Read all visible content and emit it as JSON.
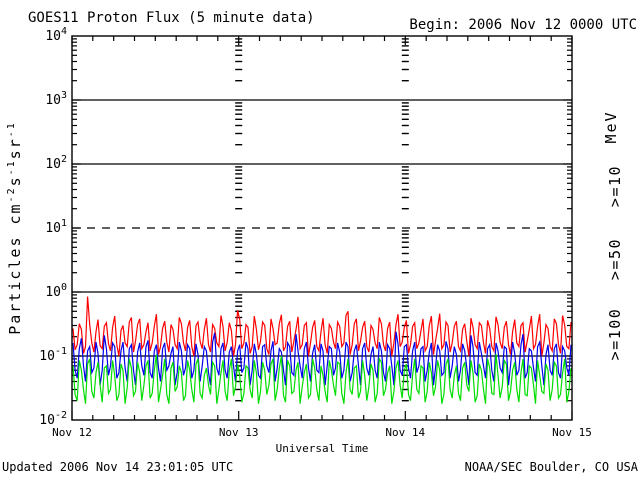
{
  "header": {
    "title": "GOES11 Proton Flux (5 minute data)",
    "begin_label": "Begin: 2006 Nov 12 0000 UTC"
  },
  "footer": {
    "updated": "Updated 2006 Nov 14 23:01:05 UTC",
    "credit": "NOAA/SEC Boulder, CO USA"
  },
  "chart_data": {
    "type": "line",
    "title": "GOES11 Proton Flux (5 minute data)",
    "xlabel": "Universal Time",
    "ylabel": "Particles cm-2s-1sr-1",
    "ylabel_parts": [
      {
        "text": "Particles cm"
      },
      {
        "sup": "-2"
      },
      {
        "text": "s"
      },
      {
        "sup": "-1"
      },
      {
        "text": "sr"
      },
      {
        "sup": "-1"
      }
    ],
    "unit_label": "MeV",
    "x_tick_labels": [
      "Nov 12",
      "Nov 13",
      "Nov 14",
      "Nov 15"
    ],
    "x_span_days": 3,
    "y_axis_range": [
      0.01,
      10000
    ],
    "y_tick_exponents": [
      4,
      3,
      2,
      1,
      0,
      -1,
      -2
    ],
    "grid": {
      "solid_decades": [
        3,
        2,
        0,
        -1
      ],
      "dashed_decades": [
        1
      ],
      "vertical_dashed_days": [
        1,
        2
      ]
    },
    "values_scale": 0.001,
    "sample_interval_minutes": 36,
    "series": [
      {
        "name": ">=10",
        "color": "#ff0000",
        "hi": [
          270,
          320,
          260,
          850,
          310,
          240,
          370,
          290,
          330,
          280,
          420,
          250,
          300,
          340,
          400,
          310,
          380,
          240,
          330,
          290,
          450,
          270,
          350,
          310,
          260,
          400,
          320,
          280,
          360,
          300,
          340,
          260,
          390,
          310,
          270,
          430,
          290,
          330,
          250,
          520,
          370,
          310,
          280,
          420,
          260,
          340,
          300,
          380,
          270,
          320,
          440,
          290,
          350,
          260,
          410,
          300,
          330,
          280,
          360,
          240,
          390,
          310,
          270,
          340,
          290,
          430,
          500,
          320,
          380,
          280,
          350,
          300,
          260,
          400,
          320,
          270,
          340,
          310,
          450,
          280,
          360,
          290,
          330,
          250,
          380,
          300,
          420,
          270,
          460,
          340,
          300,
          290,
          350,
          260,
          320,
          390,
          280,
          330,
          300,
          360,
          270,
          410,
          310,
          280,
          350,
          240,
          370,
          300,
          330,
          260,
          420,
          290,
          450,
          310,
          270,
          380,
          320,
          430,
          300,
          340
        ],
        "lo": [
          125,
          150,
          110,
          140,
          160,
          115,
          145,
          130,
          155,
          120,
          150,
          100,
          160,
          140,
          115,
          170,
          130,
          150,
          120,
          160,
          105,
          140,
          165,
          115,
          150,
          130,
          160,
          120,
          140,
          100,
          170,
          130,
          150,
          115,
          160,
          140,
          120,
          165,
          100,
          150,
          130,
          160,
          110,
          140,
          125,
          170,
          130,
          105,
          150,
          160,
          120,
          140,
          115,
          170,
          130,
          150,
          100,
          160,
          140,
          120,
          150,
          110,
          165,
          130,
          140,
          160,
          105,
          150,
          120,
          170,
          140,
          115,
          160,
          130,
          150,
          120,
          100,
          160,
          140,
          165,
          110,
          150,
          130,
          160,
          120,
          140,
          105,
          170,
          130,
          150,
          115,
          160,
          140,
          120,
          170,
          100,
          150,
          130,
          160,
          110,
          140,
          120,
          165,
          130,
          150,
          105,
          160,
          140,
          115,
          170,
          130,
          150,
          100,
          160,
          140,
          120,
          150,
          110,
          140,
          130
        ]
      },
      {
        "name": ">=50",
        "color": "#0000ee",
        "hi": [
          160,
          130,
          190,
          120,
          140,
          165,
          110,
          210,
          130,
          160,
          140,
          120,
          165,
          130,
          150,
          115,
          160,
          140,
          175,
          120,
          150,
          130,
          160,
          110,
          140,
          165,
          120,
          150,
          130,
          155,
          105,
          140,
          120,
          165,
          230,
          130,
          160,
          115,
          140,
          120,
          150,
          165,
          130,
          155,
          105,
          140,
          150,
          120,
          170,
          130,
          115,
          160,
          140,
          220,
          120,
          130,
          165,
          110,
          150,
          155,
          120,
          140,
          130,
          160,
          115,
          165,
          140,
          120,
          150,
          130,
          160,
          105,
          140,
          165,
          120,
          150,
          130,
          240,
          155,
          140,
          150,
          120,
          165,
          130,
          140,
          115,
          160,
          150,
          120,
          170,
          130,
          140,
          105,
          155,
          120,
          210,
          140,
          165,
          110,
          130,
          150,
          160,
          120,
          140,
          130,
          165,
          110,
          150,
          220,
          130,
          120,
          140,
          165,
          105,
          150,
          130,
          155,
          140,
          120,
          150
        ],
        "lo": [
          60,
          45,
          70,
          40,
          55,
          65,
          35,
          60,
          50,
          70,
          45,
          55,
          65,
          40,
          60,
          35,
          70,
          50,
          55,
          45,
          65,
          40,
          60,
          70,
          35,
          55,
          50,
          65,
          45,
          60,
          40,
          70,
          55,
          35,
          65,
          50,
          60,
          45,
          70,
          40,
          55,
          65,
          35,
          60,
          50,
          45,
          70,
          55,
          40,
          65,
          60,
          35,
          55,
          50,
          70,
          45,
          65,
          40,
          60,
          55,
          35,
          70,
          50,
          65,
          45,
          60,
          40,
          55,
          70,
          35,
          65,
          50,
          60,
          45,
          55,
          40,
          70,
          35,
          60,
          50,
          65,
          45,
          55,
          70,
          40,
          60,
          35,
          65,
          50,
          55,
          45,
          70,
          40,
          60,
          65,
          35,
          55,
          50,
          70,
          45,
          60,
          40,
          65,
          55,
          35,
          70,
          50,
          60,
          45,
          55,
          65,
          40,
          70,
          35,
          60,
          50,
          55,
          45,
          65,
          50
        ]
      },
      {
        "name": ">=100",
        "color": "#00dd00",
        "hi": [
          70,
          85,
          60,
          75,
          90,
          55,
          80,
          65,
          70,
          85,
          50,
          75,
          60,
          90,
          65,
          80,
          55,
          70,
          85,
          60,
          105,
          50,
          90,
          65,
          80,
          70,
          55,
          85,
          60,
          75,
          90,
          50,
          65,
          80,
          70,
          55,
          85,
          60,
          90,
          75,
          50,
          70,
          65,
          85,
          55,
          80,
          60,
          75,
          90,
          65,
          100,
          85,
          70,
          60,
          80,
          55,
          75,
          90,
          65,
          70,
          50,
          85,
          60,
          80,
          75,
          55,
          90,
          65,
          70,
          85,
          50,
          75,
          60,
          90,
          80,
          55,
          70,
          65,
          85,
          60,
          75,
          50,
          90,
          70,
          65,
          80,
          55,
          85,
          60,
          75,
          90,
          50,
          70,
          65,
          80,
          85,
          55,
          75,
          60,
          90,
          65,
          108,
          50,
          85,
          75,
          60,
          80,
          55,
          90,
          70,
          65,
          85,
          50,
          75,
          60,
          80,
          70,
          55,
          90,
          65
        ],
        "lo": [
          25,
          20,
          30,
          18,
          28,
          22,
          35,
          19,
          26,
          30,
          20,
          25,
          18,
          32,
          24,
          28,
          20,
          35,
          22,
          26,
          19,
          30,
          25,
          18,
          28,
          33,
          20,
          24,
          30,
          19,
          26,
          22,
          35,
          25,
          18,
          30,
          28,
          20,
          24,
          33,
          19,
          26,
          30,
          22,
          18,
          28,
          25,
          35,
          20,
          30,
          24,
          19,
          26,
          28,
          18,
          33,
          22,
          25,
          30,
          20,
          28,
          19,
          35,
          24,
          26,
          18,
          30,
          25,
          22,
          28,
          20,
          33,
          19,
          26,
          24,
          30,
          18,
          28,
          35,
          22,
          25,
          20,
          30,
          26,
          19,
          28,
          24,
          33,
          18,
          25,
          30,
          22,
          26,
          20,
          35,
          28,
          19,
          24,
          30,
          18,
          26,
          25,
          22,
          33,
          20,
          28,
          30,
          19,
          25,
          24,
          35,
          18,
          28,
          26,
          20,
          30,
          22,
          25,
          19,
          28
        ]
      }
    ]
  }
}
